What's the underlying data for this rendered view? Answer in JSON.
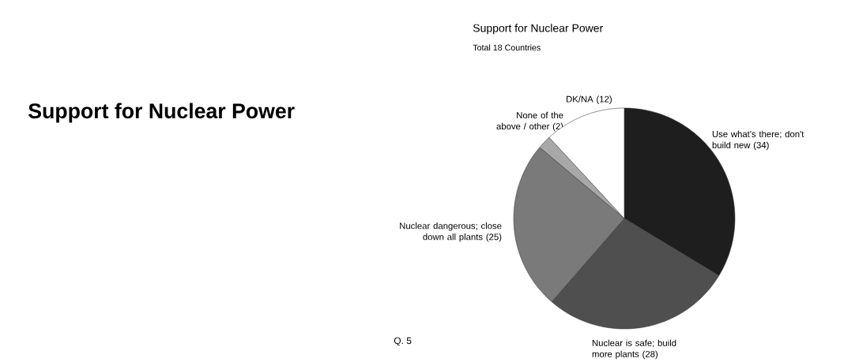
{
  "chart_data": {
    "type": "pie",
    "title": "Support for Nuclear Power",
    "subtitle": "Total 18 Countries",
    "annotations": [
      "Support for Nuclear Power",
      "Q. 5"
    ],
    "categories": [
      "Use what's there; don't build new",
      "Nuclear is safe; build more plants",
      "Nuclear dangerous; close down all plants",
      "None of the above / other",
      "DK/NA"
    ],
    "values": [
      34,
      28,
      25,
      2,
      12
    ],
    "colors": [
      "#1e1e1e",
      "#4f4f4f",
      "#7a7a7a",
      "#a8a8a8",
      "#ffffff"
    ],
    "value_labels": [
      "(34)",
      "(28)",
      "(25)",
      "(2)",
      "(12)"
    ]
  }
}
